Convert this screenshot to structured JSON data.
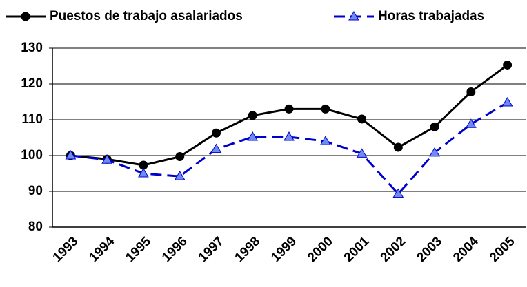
{
  "chart_data": {
    "type": "line",
    "categories": [
      "1993",
      "1994",
      "1995",
      "1996",
      "1997",
      "1998",
      "1999",
      "2000",
      "2001",
      "2002",
      "2003",
      "2004",
      "2005"
    ],
    "series": [
      {
        "name": "Puestos de trabajo asalariados",
        "color": "#000000",
        "marker": "circle",
        "dashed": false,
        "values": [
          100,
          99,
          97.3,
          99.7,
          106.3,
          111.2,
          113,
          113,
          110.2,
          102.3,
          108,
          117.8,
          125.3
        ]
      },
      {
        "name": "Horas trabajadas",
        "color": "#0000cc",
        "marker": "triangle",
        "dashed": true,
        "values": [
          100,
          98.8,
          95,
          94.2,
          101.8,
          105.2,
          105.2,
          104,
          100.5,
          89.3,
          100.8,
          108.8,
          114.8
        ]
      }
    ],
    "ylim": [
      80,
      130
    ],
    "yticks": [
      80,
      90,
      100,
      110,
      120,
      130
    ],
    "grid": true
  }
}
